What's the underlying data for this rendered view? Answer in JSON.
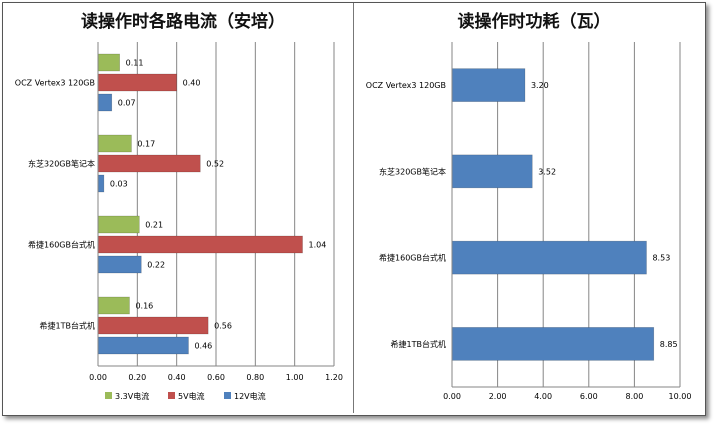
{
  "chart_data": [
    {
      "type": "bar",
      "orientation": "horizontal",
      "title": "读操作时各路电流（安培）",
      "categories": [
        "OCZ Vertex3 120GB",
        "东芝320GB笔记本",
        "希捷160GB台式机",
        "希捷1TB台式机"
      ],
      "series": [
        {
          "name": "3.3V电流",
          "color": "#9bbb59",
          "values": [
            0.11,
            0.17,
            0.21,
            0.16
          ],
          "labels": [
            "0.11",
            "0.17",
            "0.21",
            "0.16"
          ]
        },
        {
          "name": "5V电流",
          "color": "#c0504d",
          "values": [
            0.4,
            0.52,
            1.04,
            0.56
          ],
          "labels": [
            "0.40",
            "0.52",
            "1.04",
            "0.56"
          ]
        },
        {
          "name": "12V电流",
          "color": "#4f81bd",
          "values": [
            0.07,
            0.03,
            0.22,
            0.46
          ],
          "labels": [
            "0.07",
            "0.03",
            "0.22",
            "0.46"
          ]
        }
      ],
      "xlim": [
        0,
        1.2
      ],
      "ticks": [
        "0.00",
        "0.20",
        "0.40",
        "0.60",
        "0.80",
        "1.00",
        "1.20"
      ],
      "grid": true,
      "legend": "bottom"
    },
    {
      "type": "bar",
      "orientation": "horizontal",
      "title": "读操作时功耗（瓦）",
      "categories": [
        "OCZ Vertex3 120GB",
        "东芝320GB笔记本",
        "希捷160GB台式机",
        "希捷1TB台式机"
      ],
      "series": [
        {
          "color": "#4f81bd",
          "values": [
            3.2,
            3.52,
            8.53,
            8.85
          ],
          "labels": [
            "3.20",
            "3.52",
            "8.53",
            "8.85"
          ]
        }
      ],
      "xlim": [
        0,
        10
      ],
      "ticks": [
        "0.00",
        "2.00",
        "4.00",
        "6.00",
        "8.00",
        "10.00"
      ],
      "grid": true
    }
  ]
}
